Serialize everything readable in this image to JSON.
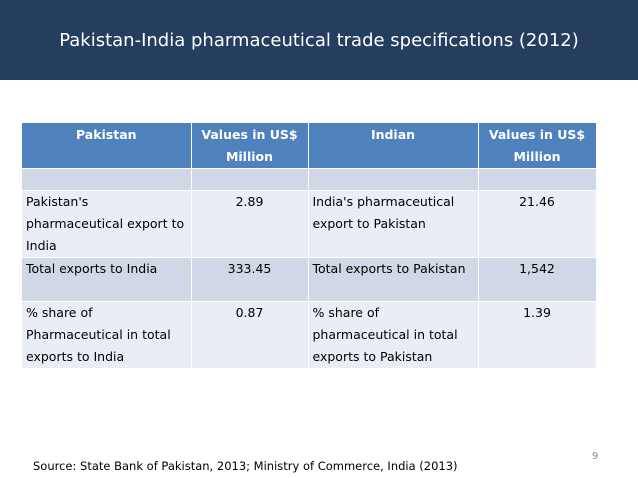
{
  "header": {
    "title": "Pakistan-India pharmaceutical trade specifications (2012)"
  },
  "table": {
    "columns": [
      "Pakistan",
      "Values in US$ Million",
      "Indian",
      "Values in US$ Million"
    ],
    "rows": [
      [
        "Pakistan's pharmaceutical export to India",
        "2.89",
        "India's pharmaceutical export to Pakistan",
        "21.46"
      ],
      [
        "Total exports to India",
        "333.45",
        "Total exports to Pakistan",
        "1,542"
      ],
      [
        "% share of Pharmaceutical in total exports to India",
        "0.87",
        "% share of pharmaceutical in total exports to Pakistan",
        "1.39"
      ]
    ]
  },
  "footer": {
    "page_number": "9",
    "source": "Source: State Bank of Pakistan, 2013; Ministry of Commerce, India (2013)"
  }
}
